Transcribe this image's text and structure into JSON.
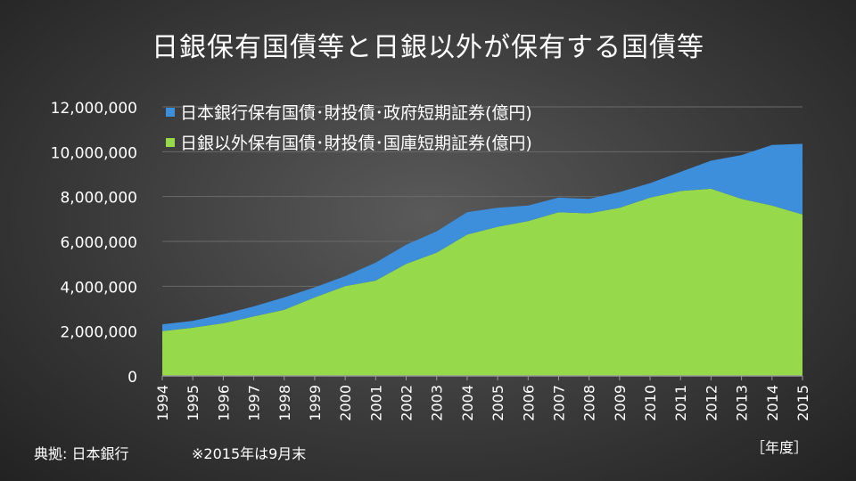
{
  "title": "日銀保有国債等と日銀以外が保有する国債等",
  "source": "典拠: 日本銀行",
  "note": "※2015年は9月末",
  "colors": {
    "boj": "#3d8fdc",
    "others": "#96d94b",
    "grid": "#6a6a6a",
    "text": "#ffffff"
  },
  "chart_data": {
    "type": "area",
    "stacked": true,
    "x": [
      "1994",
      "1995",
      "1996",
      "1997",
      "1998",
      "1999",
      "2000",
      "2001",
      "2002",
      "2003",
      "2004",
      "2005",
      "2006",
      "2007",
      "2008",
      "2009",
      "2010",
      "2011",
      "2012",
      "2013",
      "2014",
      "2015"
    ],
    "series": [
      {
        "name": "日銀以外保有国債･財投債･国庫短期証券(億円)",
        "color": "#96d94b",
        "values": [
          2000000,
          2150000,
          2350000,
          2650000,
          2950000,
          3500000,
          4000000,
          4250000,
          5000000,
          5500000,
          6300000,
          6650000,
          6900000,
          7300000,
          7250000,
          7500000,
          7950000,
          8250000,
          8350000,
          7900000,
          7600000,
          7200000
        ]
      },
      {
        "name": "日本銀行保有国債･財投債･政府短期証券(億円)",
        "color": "#3d8fdc",
        "values": [
          300000,
          300000,
          400000,
          450000,
          550000,
          450000,
          450000,
          800000,
          850000,
          950000,
          1000000,
          850000,
          700000,
          650000,
          650000,
          700000,
          650000,
          850000,
          1250000,
          1950000,
          2700000,
          3150000
        ]
      }
    ],
    "ylim": [
      0,
      12000000
    ],
    "yticks": [
      "0",
      "2,000,000",
      "4,000,000",
      "6,000,000",
      "8,000,000",
      "10,000,000",
      "12,000,000"
    ],
    "ytick_values": [
      0,
      2000000,
      4000000,
      6000000,
      8000000,
      10000000,
      12000000
    ],
    "xlabel": "［年度］",
    "legend_placement": "top-left",
    "grid": true
  }
}
